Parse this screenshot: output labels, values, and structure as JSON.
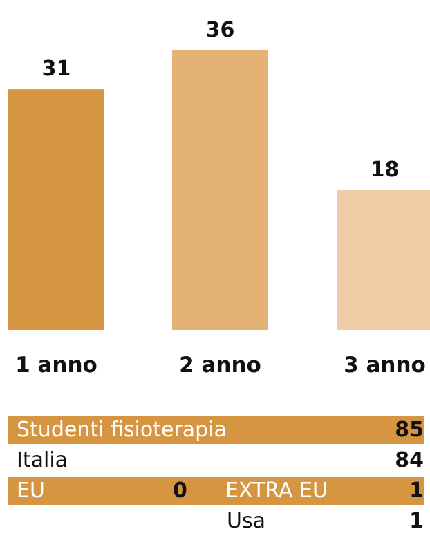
{
  "chart_data": {
    "type": "bar",
    "categories": [
      "1 anno",
      "2 anno",
      "3 anno"
    ],
    "values": [
      31,
      36,
      18
    ],
    "colors": [
      "#d69641",
      "#e3b274",
      "#efcda7"
    ],
    "title": "",
    "xlabel": "",
    "ylabel": "",
    "ylim": [
      0,
      36
    ],
    "grid": false,
    "legend": "none"
  },
  "summary": {
    "total_label": "Studenti fisioterapia",
    "total_value": "85",
    "italia_label": "Italia",
    "italia_value": "84",
    "eu_label": "EU",
    "eu_value": "0",
    "extra_eu_label": "EXTRA EU",
    "extra_eu_value": "1",
    "usa_label": "Usa",
    "usa_value": "1"
  },
  "theme": {
    "accent": "#d69641"
  }
}
